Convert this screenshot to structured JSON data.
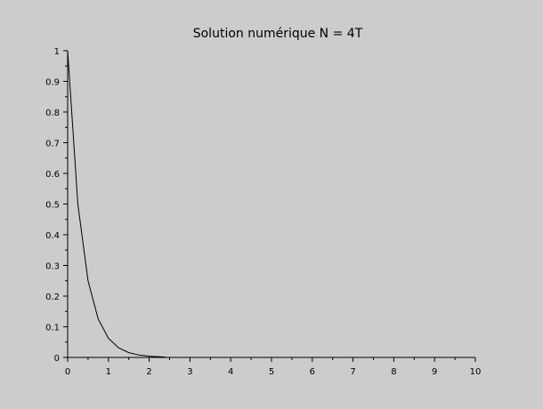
{
  "chart_data": {
    "type": "line",
    "title": "Solution numérique N = 4T",
    "xlabel": "",
    "ylabel": "",
    "xlim": [
      0,
      10
    ],
    "ylim": [
      0,
      1
    ],
    "x_ticks": [
      0,
      1,
      2,
      3,
      4,
      5,
      6,
      7,
      8,
      9,
      10
    ],
    "y_ticks": [
      0,
      0.1,
      0.2,
      0.3,
      0.4,
      0.5,
      0.6,
      0.7,
      0.8,
      0.9,
      1
    ],
    "x_tick_labels": [
      "0",
      "1",
      "2",
      "3",
      "4",
      "5",
      "6",
      "7",
      "8",
      "9",
      "10"
    ],
    "y_tick_labels": [
      "0",
      "0.1",
      "0.2",
      "0.3",
      "0.4",
      "0.5",
      "0.6",
      "0.7",
      "0.8",
      "0.9",
      "1"
    ],
    "grid": false,
    "colors": {
      "background": "#cccccc",
      "line": "#000000",
      "axes": "#000000"
    },
    "series": [
      {
        "x": [
          0,
          0.25,
          0.5,
          0.75,
          1,
          1.25,
          1.5,
          1.75,
          2,
          2.25,
          2.4
        ],
        "y": [
          1,
          0.5,
          0.25,
          0.125,
          0.0625,
          0.03125,
          0.015625,
          0.0078125,
          0.0039,
          0.002,
          0.001
        ]
      }
    ]
  }
}
